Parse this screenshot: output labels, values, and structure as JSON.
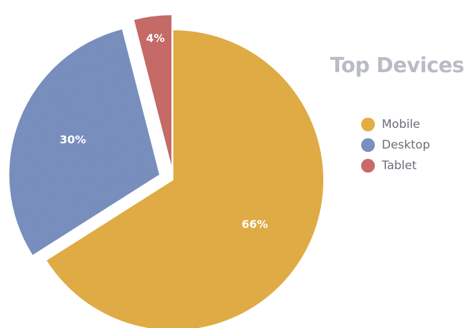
{
  "chart_data": {
    "type": "pie",
    "title": "Top Devices",
    "categories": [
      "Mobile",
      "Desktop",
      "Tablet"
    ],
    "values": [
      66,
      30,
      4
    ],
    "value_labels": [
      "66%",
      "30%",
      "4%"
    ],
    "colors": [
      "#e2ad45",
      "#7990bf",
      "#c76b67"
    ],
    "exploded": [
      false,
      true,
      true
    ],
    "legend_position": "right"
  }
}
